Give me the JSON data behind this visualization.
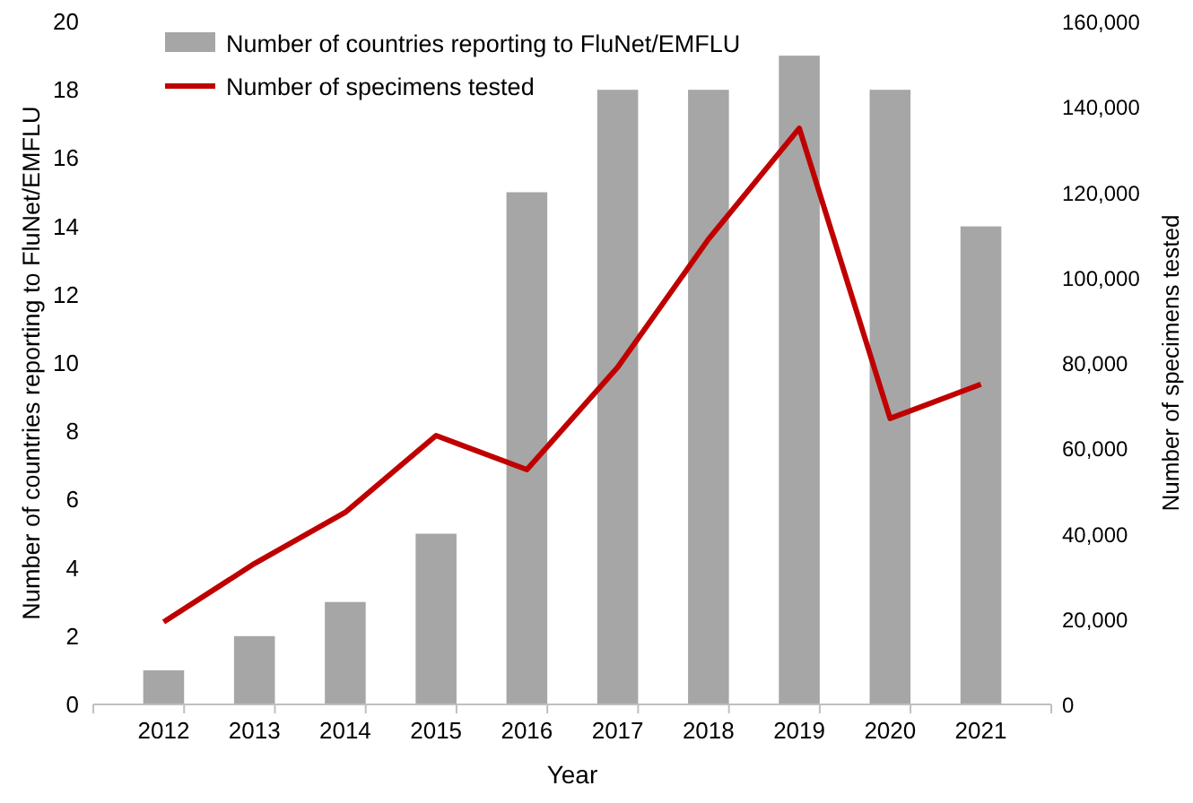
{
  "chart_data": {
    "type": "bar",
    "xlabel": "Year",
    "ylabel": "Number of countries reporting to FluNet/EMFLU",
    "y2label": "Number of specimens tested",
    "categories": [
      "2012",
      "2013",
      "2014",
      "2015",
      "2016",
      "2017",
      "2018",
      "2019",
      "2020",
      "2021"
    ],
    "series": [
      {
        "name": "Number of countries reporting to FluNet/EMFLU",
        "color": "#a6a6a6",
        "values": [
          1,
          2,
          3,
          5,
          15,
          18,
          18,
          19,
          18,
          14
        ]
      },
      {
        "name": "Number of specimens tested",
        "type": "line",
        "axis": "y2",
        "color": "#c00000",
        "values": [
          19300,
          33000,
          45000,
          63000,
          55000,
          79000,
          109000,
          135000,
          67000,
          75000
        ]
      }
    ],
    "ylim": [
      0,
      20
    ],
    "yticks": [
      0,
      2,
      4,
      6,
      8,
      10,
      12,
      14,
      16,
      18,
      20
    ],
    "y2lim": [
      0,
      160000
    ],
    "y2ticks": [
      0,
      {
        "value": 20000,
        "label": "20,000"
      },
      {
        "value": 40000,
        "label": "40,000"
      },
      {
        "value": 60000,
        "label": "60,000"
      },
      {
        "value": 80000,
        "label": "80,000"
      },
      {
        "value": 100000,
        "label": "100,000"
      },
      {
        "value": 120000,
        "label": "120,000"
      },
      {
        "value": 140000,
        "label": "140,000"
      },
      {
        "value": 160000,
        "label": "160,000"
      }
    ],
    "legend": "top left",
    "marker": "none",
    "line_style": "solid"
  }
}
